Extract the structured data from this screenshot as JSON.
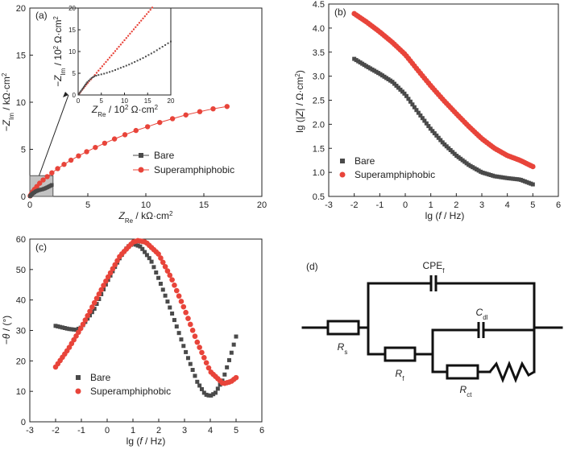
{
  "colors": {
    "bare": "#4a4a4a",
    "super": "#e8443a",
    "axis": "#222222",
    "circuit": "#111111"
  },
  "legend": {
    "bare": "Bare",
    "super": "Superamphiphobic"
  },
  "chart_data": [
    {
      "id": "a",
      "panel_label": "(a)",
      "type": "scatter",
      "xlabel": "Z_Re / kΩ·cm²",
      "ylabel": "−Z_Im / kΩ·cm²",
      "xlim": [
        0,
        20
      ],
      "ylim": [
        0,
        20
      ],
      "xticks": [
        0,
        5,
        10,
        15,
        20
      ],
      "yticks": [
        0,
        5,
        10,
        15,
        20
      ],
      "legend_position": "center-right",
      "series": [
        {
          "name": "Bare",
          "marker": "square",
          "x": [
            0.02,
            0.05,
            0.1,
            0.15,
            0.22,
            0.3,
            0.4,
            0.5,
            0.6,
            0.7,
            0.8,
            0.9,
            1.0,
            1.1,
            1.2,
            1.3,
            1.4,
            1.5,
            1.6,
            1.7,
            1.8,
            1.9
          ],
          "y": [
            0.02,
            0.06,
            0.12,
            0.2,
            0.28,
            0.36,
            0.44,
            0.52,
            0.58,
            0.63,
            0.67,
            0.7,
            0.73,
            0.76,
            0.8,
            0.85,
            0.9,
            0.96,
            1.02,
            1.08,
            1.15,
            1.22
          ]
        },
        {
          "name": "Superamphiphobic",
          "marker": "circle",
          "x": [
            0.03,
            0.08,
            0.15,
            0.25,
            0.4,
            0.6,
            0.85,
            1.15,
            1.5,
            1.9,
            2.4,
            2.95,
            3.55,
            4.2,
            4.9,
            5.65,
            6.45,
            7.3,
            8.2,
            9.15,
            10.15,
            11.2,
            12.3,
            13.45,
            14.65,
            15.8,
            17.0
          ],
          "y": [
            0.05,
            0.15,
            0.3,
            0.5,
            0.75,
            1.05,
            1.4,
            1.75,
            2.1,
            2.5,
            2.95,
            3.4,
            3.85,
            4.3,
            4.75,
            5.2,
            5.65,
            6.1,
            6.55,
            7.0,
            7.4,
            7.85,
            8.25,
            8.65,
            9.0,
            9.3,
            9.55
          ]
        }
      ],
      "inset": {
        "xlabel": "Z_Re / 10² Ω·cm²",
        "ylabel": "−Z_Im / 10² Ω·cm²",
        "xlim": [
          0,
          20
        ],
        "ylim": [
          0,
          20
        ],
        "xticks": [
          0,
          5,
          10,
          15,
          20
        ],
        "yticks": [
          0,
          5,
          10,
          15,
          20
        ],
        "bare": {
          "x": [
            0.2,
            0.4,
            0.6,
            0.8,
            1.0,
            1.2,
            1.4,
            1.6,
            1.8,
            2.0,
            2.3,
            2.6,
            2.9,
            3.2,
            3.5,
            3.9,
            4.4,
            5.0,
            5.6,
            6.2,
            6.8,
            7.4,
            8.0,
            8.6,
            9.2,
            9.8,
            10.4,
            11.0,
            11.6,
            12.2,
            12.8,
            13.4,
            14.0,
            14.6,
            15.2,
            15.8,
            16.4,
            17.0,
            17.6,
            18.2,
            18.8,
            19.4,
            20.0
          ],
          "y": [
            0.3,
            0.6,
            0.9,
            1.2,
            1.5,
            1.8,
            2.1,
            2.4,
            2.7,
            3.0,
            3.3,
            3.6,
            3.9,
            4.1,
            4.3,
            4.45,
            4.6,
            4.75,
            4.9,
            5.1,
            5.3,
            5.5,
            5.75,
            6.0,
            6.25,
            6.5,
            6.75,
            7.0,
            7.3,
            7.6,
            7.9,
            8.2,
            8.5,
            8.85,
            9.2,
            9.55,
            9.9,
            10.3,
            10.7,
            11.1,
            11.5,
            11.9,
            12.3
          ]
        },
        "super": {
          "x": [
            0.3,
            0.6,
            0.9,
            1.2,
            1.5,
            1.8,
            2.1,
            2.4,
            2.8,
            3.2,
            3.6,
            4.0,
            4.4,
            4.8,
            5.2,
            5.6,
            6.0,
            6.4,
            6.8,
            7.2,
            7.6,
            8.0,
            8.4,
            8.8,
            9.2,
            9.6,
            10.0,
            10.4,
            10.8,
            11.2,
            11.6,
            12.0,
            12.4,
            12.8,
            13.2,
            13.6,
            14.0,
            14.4,
            14.8,
            15.2,
            15.6,
            16.0
          ],
          "y": [
            0.4,
            0.8,
            1.2,
            1.6,
            2.0,
            2.4,
            2.8,
            3.2,
            3.6,
            4.1,
            4.6,
            5.1,
            5.6,
            6.1,
            6.6,
            7.1,
            7.6,
            8.1,
            8.6,
            9.1,
            9.6,
            10.1,
            10.6,
            11.1,
            11.6,
            12.1,
            12.6,
            13.1,
            13.6,
            14.1,
            14.6,
            15.1,
            15.6,
            16.1,
            16.6,
            17.1,
            17.6,
            18.1,
            18.6,
            19.1,
            19.6,
            20.1
          ]
        }
      }
    },
    {
      "id": "b",
      "panel_label": "(b)",
      "type": "scatter",
      "xlabel": "lg (f / Hz)",
      "ylabel": "lg (|Z| / Ω·cm²)",
      "xlim": [
        -3,
        6
      ],
      "ylim": [
        0.5,
        4.5
      ],
      "xticks": [
        -3,
        -2,
        -1,
        0,
        1,
        2,
        3,
        4,
        5,
        6
      ],
      "yticks": [
        0.5,
        1.0,
        1.5,
        2.0,
        2.5,
        3.0,
        3.5,
        4.0,
        4.5
      ],
      "legend_position": "lower-left",
      "bare_curve": [
        [
          -2,
          3.36
        ],
        [
          -1.5,
          3.2
        ],
        [
          -1,
          3.05
        ],
        [
          -0.5,
          2.88
        ],
        [
          0,
          2.62
        ],
        [
          0.5,
          2.25
        ],
        [
          1,
          1.9
        ],
        [
          1.5,
          1.6
        ],
        [
          2,
          1.35
        ],
        [
          2.5,
          1.15
        ],
        [
          3,
          1.0
        ],
        [
          3.5,
          0.92
        ],
        [
          4,
          0.88
        ],
        [
          4.5,
          0.85
        ],
        [
          5,
          0.75
        ]
      ],
      "super_curve": [
        [
          -2,
          4.3
        ],
        [
          -1.5,
          4.12
        ],
        [
          -1,
          3.92
        ],
        [
          -0.5,
          3.7
        ],
        [
          0,
          3.45
        ],
        [
          0.5,
          3.12
        ],
        [
          1,
          2.8
        ],
        [
          1.5,
          2.5
        ],
        [
          2,
          2.22
        ],
        [
          2.5,
          1.95
        ],
        [
          3,
          1.7
        ],
        [
          3.5,
          1.5
        ],
        [
          4,
          1.35
        ],
        [
          4.5,
          1.25
        ],
        [
          5,
          1.12
        ]
      ]
    },
    {
      "id": "c",
      "panel_label": "(c)",
      "type": "scatter",
      "xlabel": "lg (f / Hz)",
      "ylabel": "−θ / (°)",
      "xlim": [
        -3,
        6
      ],
      "ylim": [
        0,
        60
      ],
      "xticks": [
        -3,
        -2,
        -1,
        0,
        1,
        2,
        3,
        4,
        5,
        6
      ],
      "yticks": [
        0,
        10,
        20,
        30,
        40,
        50,
        60
      ],
      "legend_position": "lower-left",
      "bare_curve": [
        [
          -2,
          31.5
        ],
        [
          -1.5,
          30.5
        ],
        [
          -1.2,
          30.2
        ],
        [
          -1,
          31
        ],
        [
          -0.5,
          37
        ],
        [
          0,
          46
        ],
        [
          0.5,
          54
        ],
        [
          0.8,
          57.5
        ],
        [
          1,
          58.5
        ],
        [
          1.3,
          57.5
        ],
        [
          1.7,
          53
        ],
        [
          2,
          47
        ],
        [
          2.5,
          36
        ],
        [
          3,
          24
        ],
        [
          3.5,
          13
        ],
        [
          3.8,
          9
        ],
        [
          4,
          8.5
        ],
        [
          4.2,
          9.5
        ],
        [
          4.5,
          14
        ],
        [
          4.8,
          22
        ],
        [
          5,
          28
        ]
      ],
      "super_curve": [
        [
          -2,
          18
        ],
        [
          -1.5,
          24
        ],
        [
          -1,
          31
        ],
        [
          -0.5,
          39
        ],
        [
          0,
          47
        ],
        [
          0.5,
          54.5
        ],
        [
          1,
          59
        ],
        [
          1.2,
          59.5
        ],
        [
          1.5,
          59
        ],
        [
          2,
          55
        ],
        [
          2.5,
          47
        ],
        [
          3,
          37
        ],
        [
          3.5,
          26
        ],
        [
          4,
          16.5
        ],
        [
          4.5,
          12.5
        ],
        [
          4.8,
          13.2
        ],
        [
          5,
          14.5
        ]
      ]
    }
  ],
  "circuit": {
    "panel_label": "(d)",
    "components": {
      "cpe": "CPE_f",
      "rs": "R_s",
      "rf": "R_f",
      "cdl": "C_dl",
      "rct": "R_ct"
    }
  }
}
